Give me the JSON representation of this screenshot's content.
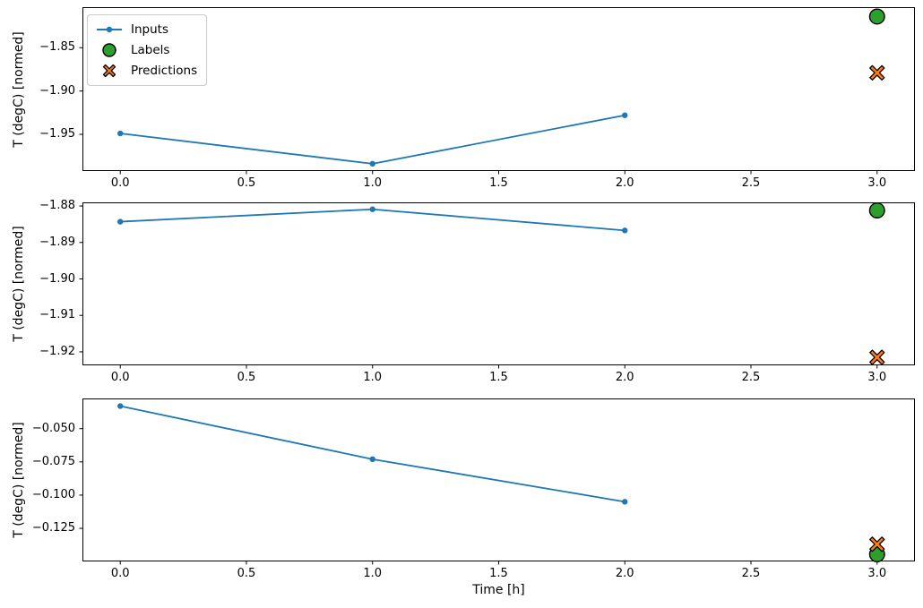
{
  "figure": {
    "background": "#ffffff",
    "text_color": "#000000",
    "spine_color": "#000000"
  },
  "legend": {
    "items": [
      {
        "label": "Inputs",
        "marker": "line-dot",
        "color": "#1f77b4"
      },
      {
        "label": "Labels",
        "marker": "circle",
        "color": "#2ca02c",
        "edge_color": "#000000"
      },
      {
        "label": "Predictions",
        "marker": "x",
        "color": "#ff7f0e",
        "edge_color": "#000000"
      }
    ],
    "position": "upper left"
  },
  "xlabel": "Time [h]",
  "chart_data": [
    {
      "type": "line",
      "title": "",
      "ylabel": "T (degC) [normed]",
      "grid": false,
      "xlim": [
        -0.15,
        3.15
      ],
      "ylim": [
        -1.9924,
        -1.8032
      ],
      "xticks": [
        0.0,
        0.5,
        1.0,
        1.5,
        2.0,
        2.5,
        3.0
      ],
      "xtick_labels": [
        "0.0",
        "0.5",
        "1.0",
        "1.5",
        "2.0",
        "2.5",
        "3.0"
      ],
      "yticks": [
        -1.85,
        -1.9,
        -1.95
      ],
      "ytick_labels": [
        "−1.85",
        "−1.90",
        "−1.95"
      ],
      "series": [
        {
          "name": "Inputs",
          "type": "line",
          "color": "#1f77b4",
          "x": [
            0,
            1,
            2
          ],
          "y": [
            -1.949,
            -1.984,
            -1.928
          ]
        },
        {
          "name": "Labels",
          "type": "scatter-circle",
          "color": "#2ca02c",
          "edge_color": "#000000",
          "x": [
            3
          ],
          "y": [
            -1.814
          ]
        },
        {
          "name": "Predictions",
          "type": "scatter-x",
          "color": "#ff7f0e",
          "edge_color": "#000000",
          "x": [
            3
          ],
          "y": [
            -1.879
          ]
        }
      ]
    },
    {
      "type": "line",
      "title": "",
      "ylabel": "T (degC) [normed]",
      "grid": false,
      "xlim": [
        -0.15,
        3.15
      ],
      "ylim": [
        -1.9237,
        -1.879
      ],
      "xticks": [
        0.0,
        0.5,
        1.0,
        1.5,
        2.0,
        2.5,
        3.0
      ],
      "xtick_labels": [
        "0.0",
        "0.5",
        "1.0",
        "1.5",
        "2.0",
        "2.5",
        "3.0"
      ],
      "yticks": [
        -1.88,
        -1.89,
        -1.9,
        -1.91,
        -1.92
      ],
      "ytick_labels": [
        "−1.88",
        "−1.89",
        "−1.90",
        "−1.91",
        "−1.92"
      ],
      "series": [
        {
          "name": "Inputs",
          "type": "line",
          "color": "#1f77b4",
          "x": [
            0,
            1,
            2
          ],
          "y": [
            -1.8843,
            -1.8809,
            -1.8867
          ]
        },
        {
          "name": "Labels",
          "type": "scatter-circle",
          "color": "#2ca02c",
          "edge_color": "#000000",
          "x": [
            3
          ],
          "y": [
            -1.8812
          ]
        },
        {
          "name": "Predictions",
          "type": "scatter-x",
          "color": "#ff7f0e",
          "edge_color": "#000000",
          "x": [
            3
          ],
          "y": [
            -1.9215
          ]
        }
      ]
    },
    {
      "type": "line",
      "title": "",
      "ylabel": "T (degC) [normed]",
      "grid": false,
      "xlim": [
        -0.15,
        3.15
      ],
      "ylim": [
        -0.1499,
        -0.0273
      ],
      "xticks": [
        0.0,
        0.5,
        1.0,
        1.5,
        2.0,
        2.5,
        3.0
      ],
      "xtick_labels": [
        "0.0",
        "0.5",
        "1.0",
        "1.5",
        "2.0",
        "2.5",
        "3.0"
      ],
      "yticks": [
        -0.05,
        -0.075,
        -0.1,
        -0.125
      ],
      "ytick_labels": [
        "−0.050",
        "−0.075",
        "−0.100",
        "−0.125"
      ],
      "series": [
        {
          "name": "Inputs",
          "type": "line",
          "color": "#1f77b4",
          "x": [
            0,
            1,
            2
          ],
          "y": [
            -0.033,
            -0.073,
            -0.105
          ]
        },
        {
          "name": "Labels",
          "type": "scatter-circle",
          "color": "#2ca02c",
          "edge_color": "#000000",
          "x": [
            3
          ],
          "y": [
            -0.1445
          ]
        },
        {
          "name": "Predictions",
          "type": "scatter-x",
          "color": "#ff7f0e",
          "edge_color": "#000000",
          "x": [
            3
          ],
          "y": [
            -0.137
          ]
        }
      ]
    }
  ]
}
